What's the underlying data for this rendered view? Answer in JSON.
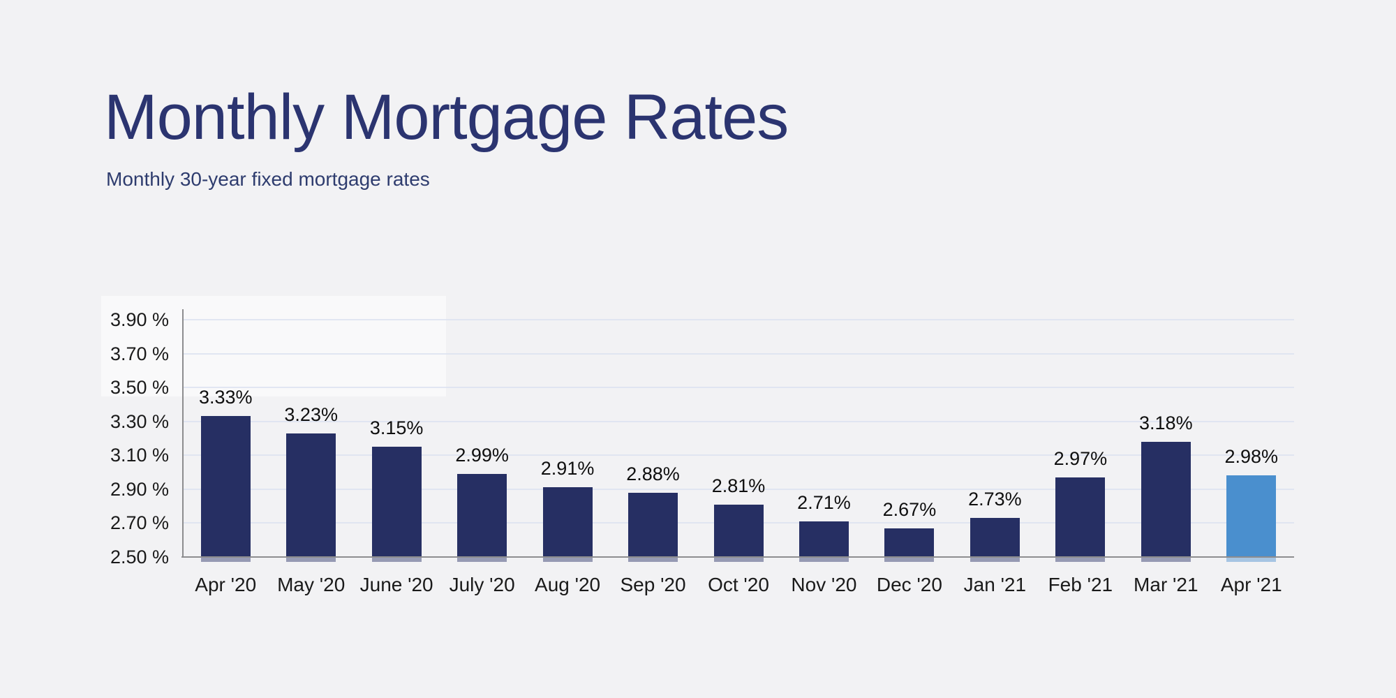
{
  "page": {
    "background": "#f2f2f4"
  },
  "chart_data": {
    "type": "bar",
    "title": "Monthly Mortgage Rates",
    "subtitle": "Monthly 30-year fixed mortgage rates",
    "categories": [
      "Apr '20",
      "May '20",
      "June '20",
      "July '20",
      "Aug '20",
      "Sep '20",
      "Oct '20",
      "Nov '20",
      "Dec '20",
      "Jan '21",
      "Feb '21",
      "Mar '21",
      "Apr '21"
    ],
    "values": [
      3.33,
      3.23,
      3.15,
      2.99,
      2.91,
      2.88,
      2.81,
      2.71,
      2.67,
      2.73,
      2.97,
      3.18,
      2.98
    ],
    "bar_labels": [
      "3.33%",
      "3.23%",
      "3.15%",
      "2.99%",
      "2.91%",
      "2.88%",
      "2.81%",
      "2.71%",
      "2.67%",
      "2.73%",
      "2.97%",
      "3.18%",
      "2.98%"
    ],
    "ytick_values": [
      3.9,
      3.7,
      3.5,
      3.3,
      3.1,
      2.9,
      2.7,
      2.5
    ],
    "ytick_labels": [
      "3.90 %",
      "3.70 %",
      "3.50 %",
      "3.30 %",
      "3.10 %",
      "2.90 %",
      "2.70 %",
      "2.50 %"
    ],
    "ylim": [
      2.5,
      3.9
    ],
    "xlabel": "",
    "ylabel": "",
    "grid": true,
    "legend": "none",
    "highlight_index": 12,
    "colors": {
      "bar": "#262f63",
      "bar_highlight": "#4a8fce",
      "gridline": "#dde3f0",
      "axis": "#8d8d8f",
      "tick_text": "#1a1a1a",
      "value_text": "#0f0f0f",
      "title_text": "#2b3470",
      "subtitle_text": "#2e3c6e",
      "background": "#f2f2f4"
    }
  }
}
